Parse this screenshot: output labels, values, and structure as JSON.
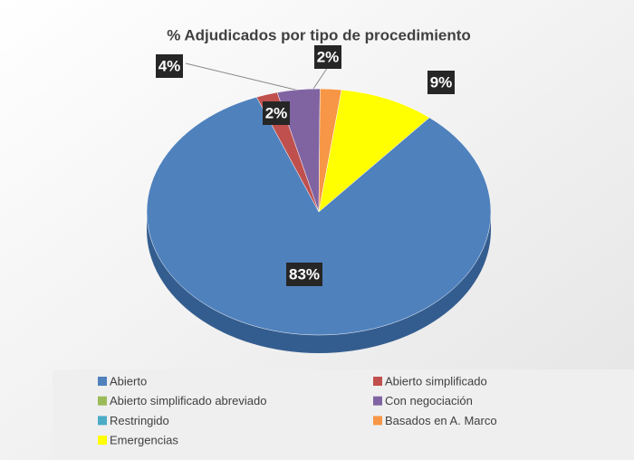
{
  "chart_data": {
    "type": "pie",
    "title": "% Adjudicados por tipo de procedimiento",
    "categories": [
      "Abierto",
      "Abierto simplificado",
      "Abierto simplificado abreviado",
      "Con negociación",
      "Restringido",
      "Basados en A. Marco",
      "Emergencias"
    ],
    "values": [
      83,
      2,
      0,
      4,
      0,
      2,
      9
    ],
    "value_labels": [
      "83%",
      "2%",
      null,
      "4%",
      null,
      "2%",
      "9%"
    ],
    "colors": [
      "#4f81bd",
      "#c0504d",
      "#9bbb59",
      "#8064a2",
      "#4bacc6",
      "#f79646",
      "#ffff00"
    ]
  }
}
